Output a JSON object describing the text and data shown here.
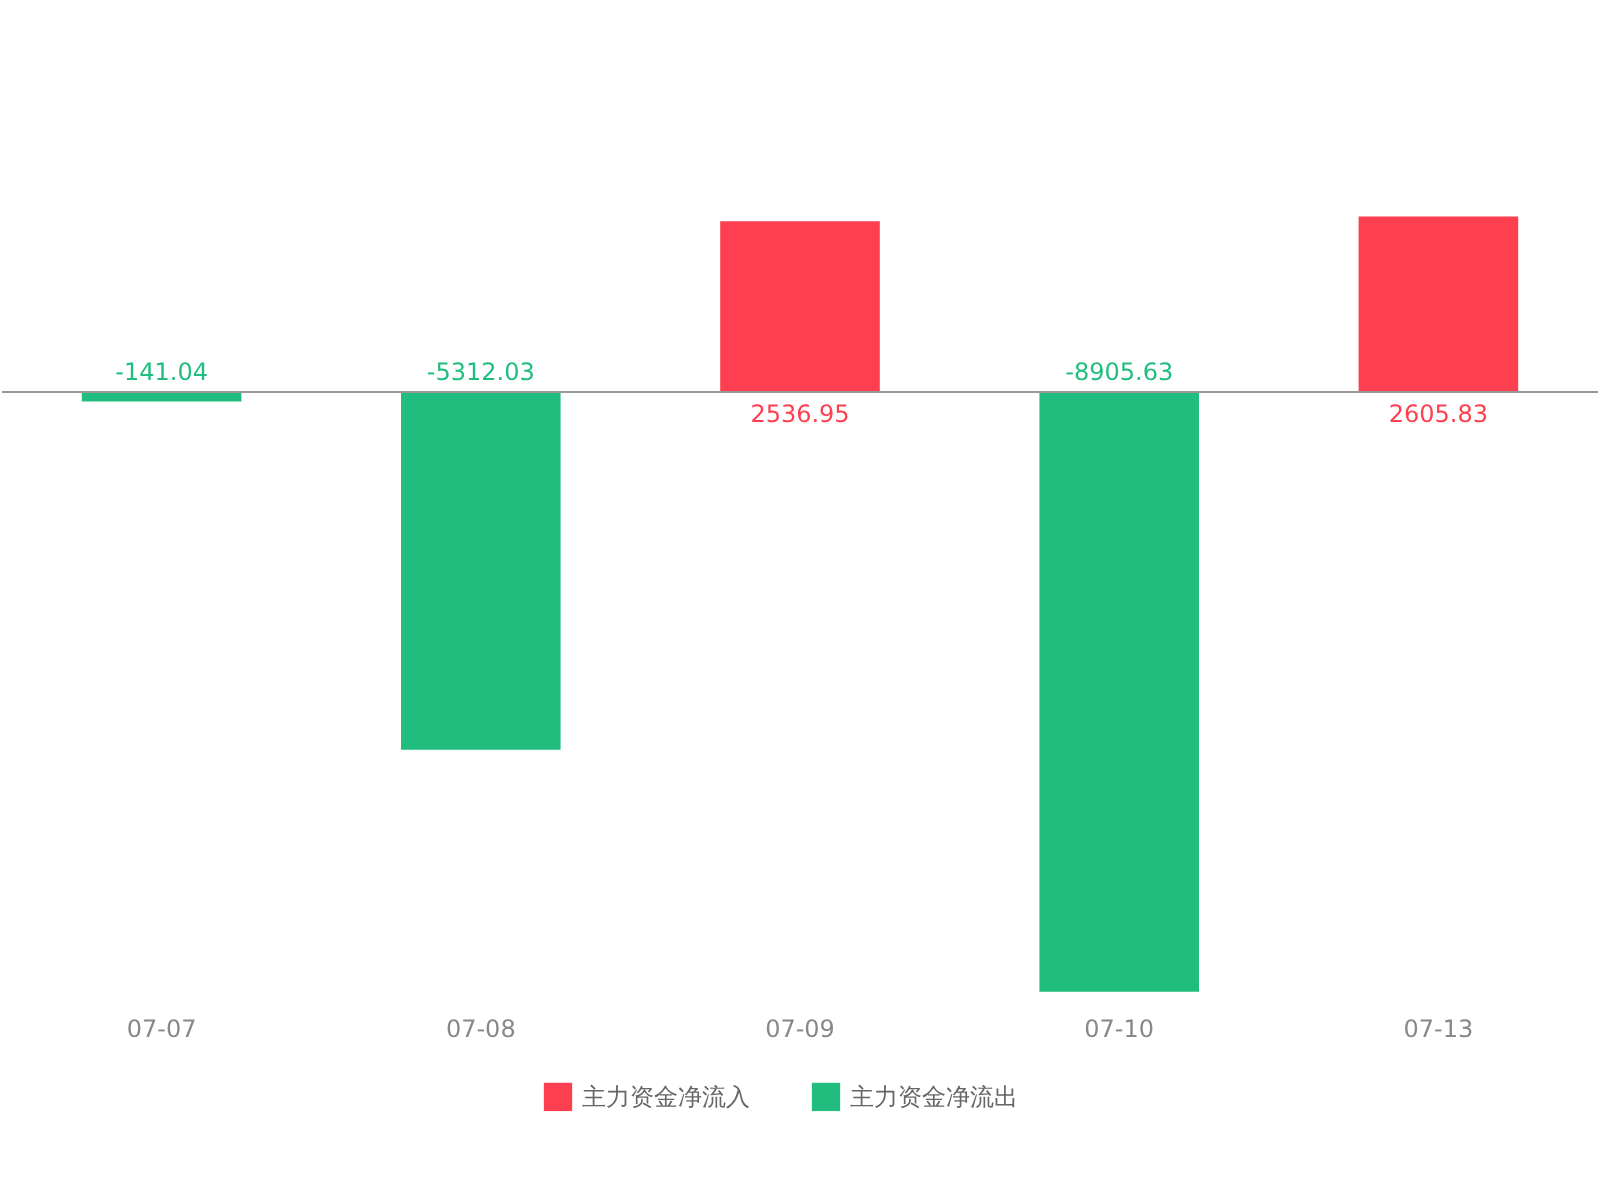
{
  "chart_data": {
    "type": "bar",
    "categories": [
      "07-07",
      "07-08",
      "07-09",
      "07-10",
      "07-13"
    ],
    "series": [
      {
        "name": "主力资金净流入",
        "color": "#fd3f4f",
        "values": [
          null,
          null,
          2536.95,
          null,
          2605.83
        ]
      },
      {
        "name": "主力资金净流出",
        "color": "#21bd7f",
        "values": [
          -141.04,
          -5312.03,
          null,
          -8905.63,
          null
        ]
      }
    ],
    "data_labels": true,
    "legend": "bottom",
    "grid": false
  }
}
